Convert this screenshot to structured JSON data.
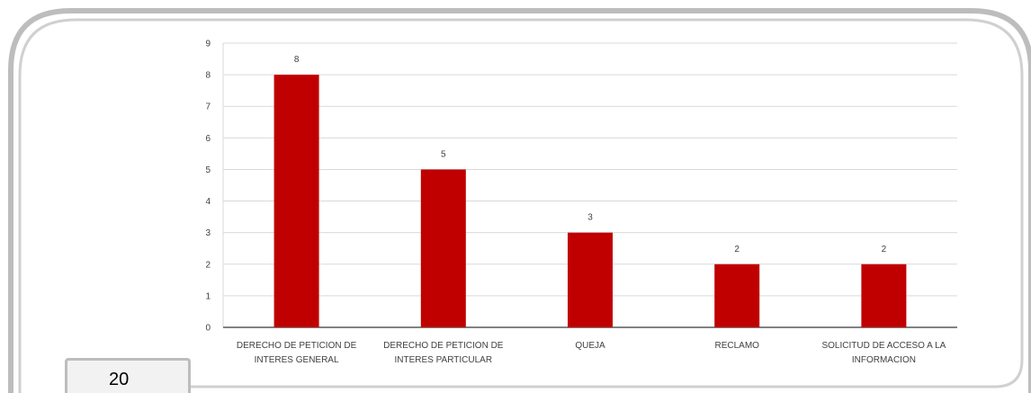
{
  "page": {
    "number": "20"
  },
  "colors": {
    "bar": "#c00000",
    "frame": "#bdbdbd",
    "gridline": "#d9d9d9",
    "axis": "#595959",
    "text": "#404040"
  },
  "chart_data": {
    "type": "bar",
    "title": "",
    "xlabel": "",
    "ylabel": "",
    "ylim": [
      0,
      9
    ],
    "yticks": [
      0,
      1,
      2,
      3,
      4,
      5,
      6,
      7,
      8,
      9
    ],
    "grid": true,
    "legend": "none",
    "categories": [
      [
        "DERECHO DE PETICION DE",
        "INTERES GENERAL"
      ],
      [
        "DERECHO DE PETICION DE",
        "INTERES PARTICULAR"
      ],
      [
        "QUEJA"
      ],
      [
        "RECLAMO"
      ],
      [
        "SOLICITUD DE ACCESO A LA",
        "INFORMACION"
      ]
    ],
    "values": [
      8,
      5,
      3,
      2,
      2
    ],
    "data_labels": [
      "8",
      "5",
      "3",
      "2",
      "2"
    ]
  }
}
